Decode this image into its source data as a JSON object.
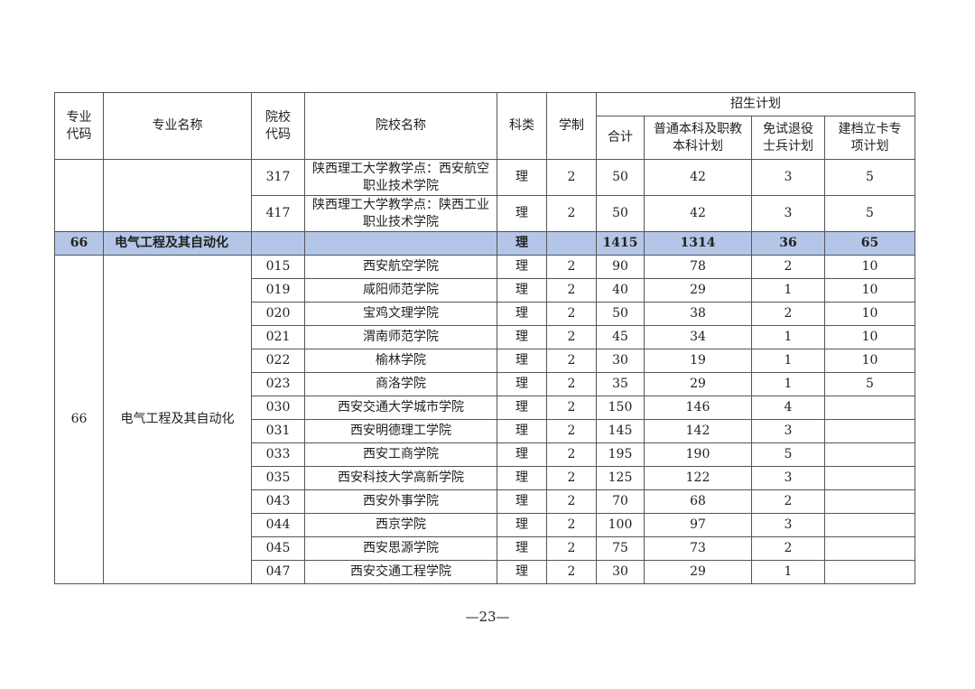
{
  "header": {
    "major_code": "专业代码",
    "major_name": "专业名称",
    "school_code": "院校代码",
    "school_name": "院校名称",
    "category": "科类",
    "duration": "学制",
    "plan_group": "招生计划",
    "total": "合计",
    "regular": "普通本科及职教本科计划",
    "veteran": "免试退役士兵计划",
    "special": "建档立卡专项计划"
  },
  "continued_rows": [
    {
      "school_code": "317",
      "school_name": "陕西理工大学教学点：西安航空职业技术学院",
      "category": "理",
      "duration": "2",
      "total": "50",
      "regular": "42",
      "veteran": "3",
      "special": "5"
    },
    {
      "school_code": "417",
      "school_name": "陕西理工大学教学点：陕西工业职业技术学院",
      "category": "理",
      "duration": "2",
      "total": "50",
      "regular": "42",
      "veteran": "3",
      "special": "5"
    }
  ],
  "summary_row": {
    "major_code": "66",
    "major_name": "电气工程及其自动化",
    "category": "理",
    "total": "1415",
    "regular": "1314",
    "veteran": "36",
    "special": "65"
  },
  "group": {
    "major_code": "66",
    "major_name": "电气工程及其自动化",
    "rows": [
      {
        "school_code": "015",
        "school_name": "西安航空学院",
        "category": "理",
        "duration": "2",
        "total": "90",
        "regular": "78",
        "veteran": "2",
        "special": "10"
      },
      {
        "school_code": "019",
        "school_name": "咸阳师范学院",
        "category": "理",
        "duration": "2",
        "total": "40",
        "regular": "29",
        "veteran": "1",
        "special": "10"
      },
      {
        "school_code": "020",
        "school_name": "宝鸡文理学院",
        "category": "理",
        "duration": "2",
        "total": "50",
        "regular": "38",
        "veteran": "2",
        "special": "10"
      },
      {
        "school_code": "021",
        "school_name": "渭南师范学院",
        "category": "理",
        "duration": "2",
        "total": "45",
        "regular": "34",
        "veteran": "1",
        "special": "10"
      },
      {
        "school_code": "022",
        "school_name": "榆林学院",
        "category": "理",
        "duration": "2",
        "total": "30",
        "regular": "19",
        "veteran": "1",
        "special": "10"
      },
      {
        "school_code": "023",
        "school_name": "商洛学院",
        "category": "理",
        "duration": "2",
        "total": "35",
        "regular": "29",
        "veteran": "1",
        "special": "5"
      },
      {
        "school_code": "030",
        "school_name": "西安交通大学城市学院",
        "category": "理",
        "duration": "2",
        "total": "150",
        "regular": "146",
        "veteran": "4",
        "special": ""
      },
      {
        "school_code": "031",
        "school_name": "西安明德理工学院",
        "category": "理",
        "duration": "2",
        "total": "145",
        "regular": "142",
        "veteran": "3",
        "special": ""
      },
      {
        "school_code": "033",
        "school_name": "西安工商学院",
        "category": "理",
        "duration": "2",
        "total": "195",
        "regular": "190",
        "veteran": "5",
        "special": ""
      },
      {
        "school_code": "035",
        "school_name": "西安科技大学高新学院",
        "category": "理",
        "duration": "2",
        "total": "125",
        "regular": "122",
        "veteran": "3",
        "special": ""
      },
      {
        "school_code": "043",
        "school_name": "西安外事学院",
        "category": "理",
        "duration": "2",
        "total": "70",
        "regular": "68",
        "veteran": "2",
        "special": ""
      },
      {
        "school_code": "044",
        "school_name": "西京学院",
        "category": "理",
        "duration": "2",
        "total": "100",
        "regular": "97",
        "veteran": "3",
        "special": ""
      },
      {
        "school_code": "045",
        "school_name": "西安思源学院",
        "category": "理",
        "duration": "2",
        "total": "75",
        "regular": "73",
        "veteran": "2",
        "special": ""
      },
      {
        "school_code": "047",
        "school_name": "西安交通工程学院",
        "category": "理",
        "duration": "2",
        "total": "30",
        "regular": "29",
        "veteran": "1",
        "special": ""
      }
    ]
  },
  "page_number": "—23—",
  "colors": {
    "highlight": "#b4c6e7"
  }
}
